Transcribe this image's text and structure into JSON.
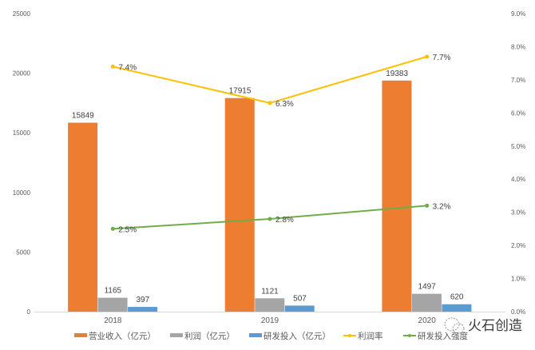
{
  "chart_data": {
    "type": "bar",
    "categories": [
      "2018",
      "2019",
      "2020"
    ],
    "bar_series": [
      {
        "name": "营业收入（亿元）",
        "values": [
          15849,
          17915,
          19383
        ],
        "color": "#ED7D31"
      },
      {
        "name": "利润（亿元）",
        "values": [
          1165,
          1121,
          1497
        ],
        "color": "#A5A5A5"
      },
      {
        "name": "研发投入（亿元）",
        "values": [
          397,
          507,
          620
        ],
        "color": "#5B9BD5"
      }
    ],
    "line_series": [
      {
        "name": "利润率",
        "values": [
          7.4,
          6.3,
          7.7
        ],
        "labels": [
          "7.4%",
          "6.3%",
          "7.7%"
        ],
        "color": "#FFC000",
        "axis": "right"
      },
      {
        "name": "研发投入强度",
        "values": [
          2.5,
          2.8,
          3.2
        ],
        "labels": [
          "2.5%",
          "2.8%",
          "3.2%"
        ],
        "color": "#70AD47",
        "axis": "right"
      }
    ],
    "ylim": [
      0,
      25000
    ],
    "y_ticks": [
      "0",
      "5000",
      "10000",
      "15000",
      "20000",
      "25000"
    ],
    "y2lim": [
      0,
      9
    ],
    "y2_ticks": [
      "0.0%",
      "1.0%",
      "2.0%",
      "3.0%",
      "4.0%",
      "5.0%",
      "6.0%",
      "7.0%",
      "8.0%",
      "9.0%"
    ],
    "grid": false,
    "legend_position": "bottom",
    "title": "",
    "xlabel": "",
    "ylabel": ""
  },
  "watermark": {
    "text": "火石创造",
    "icon": "wechat-logo-icon"
  }
}
